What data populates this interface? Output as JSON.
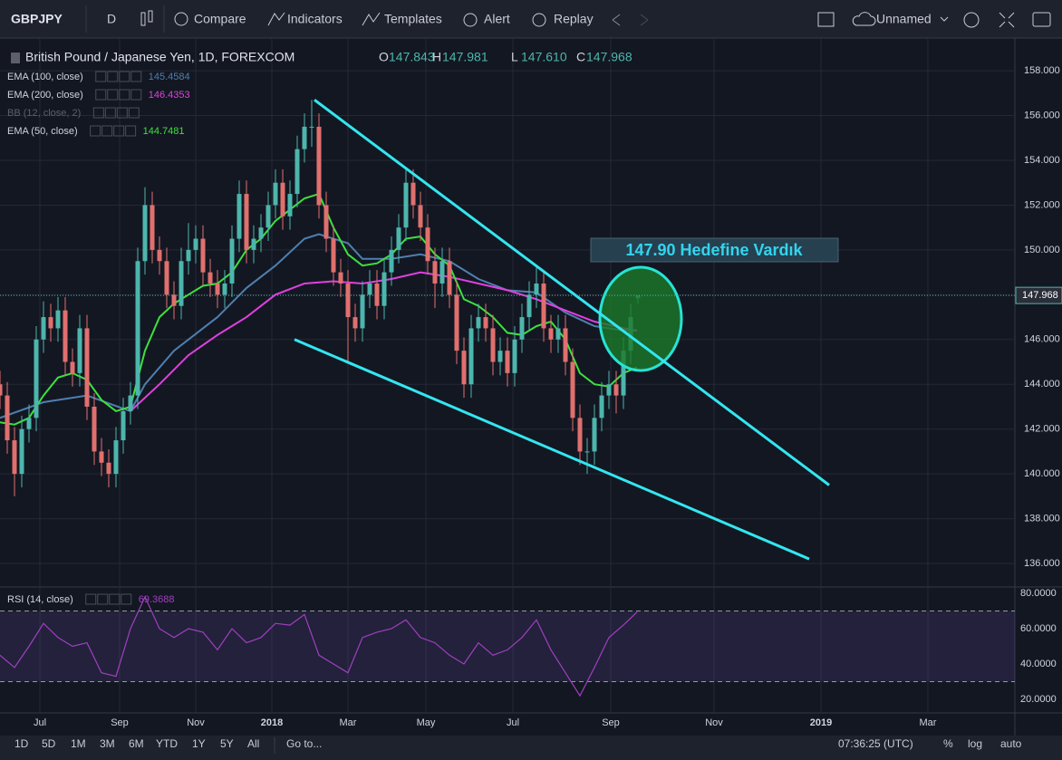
{
  "toolbar": {
    "symbol": "GBPJPY",
    "interval": "D",
    "items": [
      "Compare",
      "Indicators",
      "Templates",
      "Alert",
      "Replay"
    ],
    "layout_name": "Unnamed"
  },
  "bottom_bar": {
    "ranges": [
      "1D",
      "5D",
      "1M",
      "3M",
      "6M",
      "YTD",
      "1Y",
      "5Y",
      "All"
    ],
    "goto": "Go to...",
    "clock": "07:36:25 (UTC)",
    "options": [
      "%",
      "log",
      "auto"
    ]
  },
  "chart_data": {
    "type": "candlestick",
    "title": "British Pound / Japanese Yen, 1D, FOREXCOM",
    "ohlc": [
      {
        "label": "O",
        "value": "147.843"
      },
      {
        "label": "H",
        "value": "147.981"
      },
      {
        "label": "L",
        "value": "147.610"
      },
      {
        "label": "C",
        "value": "147.968"
      }
    ],
    "up_color": "#4db6ac",
    "down_color": "#e0706e",
    "x": [
      0,
      4,
      8,
      12,
      16,
      20,
      24,
      28,
      32,
      36,
      40,
      44,
      48,
      52,
      56,
      60,
      64,
      68,
      72,
      76,
      80,
      84,
      88,
      92,
      96,
      100,
      104,
      108,
      112,
      116,
      120,
      124,
      128,
      132,
      136,
      140,
      144,
      148,
      152,
      156,
      160,
      164,
      168,
      172,
      176,
      180,
      184,
      188,
      192,
      196,
      200,
      204,
      208,
      212,
      216,
      220,
      224,
      228,
      232,
      236,
      240,
      244,
      248,
      252,
      256,
      260,
      264,
      268,
      272,
      276,
      280,
      284,
      288,
      292,
      296,
      300,
      304,
      308,
      312,
      316,
      320,
      324,
      328,
      332,
      336,
      340,
      344,
      348,
      352
    ],
    "open": [
      144,
      143.5,
      141.5,
      140,
      142,
      142.5,
      146,
      147,
      146.5,
      147.3,
      145,
      144.5,
      146.5,
      143,
      141,
      140.5,
      140,
      141.5,
      142.8,
      143.5,
      149.5,
      152,
      150,
      149.5,
      148,
      147.5,
      149.5,
      150,
      150.5,
      149,
      148.5,
      148,
      148.5,
      150.5,
      152.5,
      150,
      150.5,
      151,
      152,
      153,
      151.5,
      152.5,
      154.5,
      155.5,
      155.5,
      152,
      150.5,
      149,
      148.5,
      147,
      146.5,
      148,
      148.5,
      147.5,
      149,
      150,
      151,
      153,
      152,
      151,
      149.5,
      148.5,
      149.5,
      148,
      145.5,
      144,
      146.5,
      147,
      146.5,
      145,
      145.5,
      144.5,
      146,
      147,
      148,
      148.5,
      146.5,
      146,
      146.5,
      145,
      142.5,
      141,
      141,
      142.5,
      143.5,
      144,
      143.5,
      145.5,
      147.843
    ],
    "high": [
      144.6,
      144.1,
      142.1,
      142.6,
      143.1,
      146.6,
      147.7,
      147.6,
      147.9,
      147.9,
      145.6,
      147.1,
      147.1,
      143.6,
      141.6,
      141.1,
      142.1,
      143.4,
      144.1,
      150.1,
      152.8,
      152.6,
      150.6,
      150.1,
      148.6,
      150.1,
      151.2,
      151.1,
      151.1,
      149.6,
      149.1,
      149.1,
      151.1,
      153.1,
      153.1,
      151.1,
      151.6,
      152.6,
      153.6,
      153.6,
      153.1,
      155.1,
      156.1,
      156.7,
      156.1,
      152.6,
      151.1,
      149.6,
      149.1,
      147.6,
      148.6,
      149.1,
      149.1,
      149.6,
      150.6,
      151.6,
      153.7,
      153.6,
      152.6,
      151.6,
      150.1,
      150.1,
      150.1,
      148.6,
      146.1,
      147.1,
      147.6,
      147.6,
      147.1,
      146.1,
      146.1,
      146.6,
      147.6,
      148.6,
      149.2,
      149.1,
      147.1,
      147.1,
      147.1,
      145.6,
      143.1,
      141.6,
      143.1,
      144.1,
      144.6,
      144.6,
      146.1,
      147.6,
      147.981
    ],
    "low": [
      142.9,
      140.9,
      139,
      139.4,
      141.4,
      141.9,
      145.4,
      145.9,
      145.9,
      144.4,
      143.9,
      143.9,
      142.4,
      140.4,
      139.9,
      139.4,
      139.4,
      140.9,
      142.2,
      142.9,
      148.9,
      149.4,
      148.9,
      147.4,
      146.9,
      146.9,
      148.9,
      149.4,
      148.4,
      147.9,
      147.4,
      147.4,
      147.9,
      149.9,
      149.4,
      149.4,
      149.9,
      150.4,
      151.4,
      150.9,
      150.9,
      151.9,
      153.9,
      154.6,
      151.4,
      149.9,
      148.4,
      147.9,
      145,
      145.9,
      145.9,
      147.4,
      146.9,
      146.9,
      148.4,
      149.4,
      150.4,
      151.4,
      150.4,
      148.9,
      147.4,
      147.9,
      147.4,
      144.9,
      143.4,
      143.4,
      145.9,
      145.9,
      144.4,
      144.4,
      143.9,
      143.9,
      145.4,
      146.4,
      147.4,
      145.9,
      145.4,
      145.4,
      144.4,
      141.9,
      140.4,
      140,
      140.4,
      141.9,
      142.9,
      142.7,
      142.9,
      144.9,
      147.61
    ],
    "close": [
      143.5,
      141.5,
      140,
      142,
      142.5,
      146,
      147,
      146.5,
      147.3,
      145,
      144.5,
      146.5,
      143,
      141,
      140.5,
      140,
      141.5,
      142.8,
      143.5,
      149.5,
      152,
      150,
      149.5,
      148,
      147.5,
      149.5,
      150,
      150.5,
      149,
      148.5,
      148,
      148.5,
      150.5,
      152.5,
      150,
      150.5,
      151,
      152,
      153,
      151.5,
      152.5,
      154.5,
      155.5,
      155.5,
      152,
      150.5,
      149,
      148.5,
      147,
      146.5,
      148,
      148.5,
      147.5,
      149,
      150,
      151,
      153,
      152,
      151,
      149.5,
      148.5,
      149.5,
      148,
      145.5,
      144,
      146.5,
      147,
      146.5,
      145,
      145.5,
      144.5,
      146,
      147,
      148,
      148.5,
      146.5,
      146,
      146.5,
      145,
      142.5,
      141,
      141,
      142.5,
      143.5,
      144,
      143.5,
      145.5,
      147,
      147.968
    ],
    "xlim": [
      0,
      560
    ],
    "xticks": [
      {
        "value": 22,
        "label": "Jul"
      },
      {
        "value": 66,
        "label": "Sep"
      },
      {
        "value": 108,
        "label": "Nov"
      },
      {
        "value": 150,
        "label": "2018"
      },
      {
        "value": 192,
        "label": "Mar"
      },
      {
        "value": 235,
        "label": "May"
      },
      {
        "value": 283,
        "label": "Jul"
      },
      {
        "value": 337,
        "label": "Sep"
      },
      {
        "value": 394,
        "label": "Nov"
      },
      {
        "value": 453,
        "label": "2019"
      },
      {
        "value": 512,
        "label": "Mar"
      }
    ],
    "ylim": [
      134.95,
      159.46
    ],
    "yticks": [
      {
        "value": 136,
        "label": "136.000"
      },
      {
        "value": 138,
        "label": "138.000"
      },
      {
        "value": 140,
        "label": "140.000"
      },
      {
        "value": 142,
        "label": "142.000"
      },
      {
        "value": 144,
        "label": "144.000"
      },
      {
        "value": 146,
        "label": "146.000"
      },
      {
        "value": 148,
        "label": "148.000"
      },
      {
        "value": 150,
        "label": "150.000"
      },
      {
        "value": 152,
        "label": "152.000"
      },
      {
        "value": 154,
        "label": "154.000"
      },
      {
        "value": 156,
        "label": "156.000"
      },
      {
        "value": 158,
        "label": "158.000"
      }
    ],
    "grid": true,
    "last_price": {
      "value": 147.968,
      "label": "147.968"
    },
    "series": [
      {
        "name": "EMA (100, close)",
        "legend_value": "145.4584",
        "color": "#4f7fae",
        "x": [
          0,
          24,
          48,
          72,
          80,
          96,
          112,
          120,
          136,
          152,
          168,
          176,
          192,
          200,
          216,
          232,
          248,
          264,
          280,
          296,
          312,
          328,
          344,
          351.5
        ],
        "values": [
          142.5,
          143.2,
          143.5,
          142.8,
          144,
          145.5,
          146.5,
          147,
          148.3,
          149.3,
          150.5,
          150.7,
          150.3,
          149.6,
          149.6,
          149.8,
          149.5,
          148.7,
          148.2,
          148.1,
          147.2,
          146.6,
          146.4,
          146.4
        ]
      },
      {
        "name": "EMA (200, close)",
        "legend_value": "146.4353",
        "color": "#e040e0",
        "x": [
          72,
          88,
          104,
          120,
          136,
          152,
          168,
          184,
          200,
          216,
          232,
          248,
          264,
          280,
          296,
          312,
          328,
          344,
          351.5
        ],
        "values": [
          142.8,
          144,
          145.3,
          146.2,
          147,
          148,
          148.5,
          148.6,
          148.5,
          148.7,
          149,
          148.8,
          148.5,
          148.2,
          147.8,
          147.3,
          146.8,
          146.5,
          146.4
        ]
      },
      {
        "name": "BB (12, close, 2)",
        "hidden": true,
        "color": "#5d606b"
      },
      {
        "name": "EMA (50, close)",
        "legend_value": "144.7481",
        "color": "#3ee03e",
        "x": [
          0,
          8,
          16,
          24,
          32,
          40,
          48,
          56,
          64,
          72,
          80,
          88,
          96,
          104,
          112,
          120,
          128,
          136,
          144,
          152,
          160,
          168,
          176,
          184,
          192,
          200,
          208,
          216,
          224,
          232,
          240,
          248,
          256,
          264,
          272,
          280,
          288,
          296,
          304,
          312,
          320,
          328,
          336,
          344,
          351.5
        ],
        "values": [
          142.3,
          142.2,
          142.5,
          143.5,
          144.3,
          144.5,
          144.2,
          143.3,
          142.8,
          143,
          145.5,
          147,
          147.6,
          148,
          148.4,
          148.5,
          149,
          150,
          150.5,
          151.3,
          151.8,
          152.3,
          152.5,
          151,
          149.8,
          149.3,
          149.4,
          149.8,
          150.5,
          150.6,
          149.8,
          149.3,
          147.8,
          147.5,
          147,
          146.3,
          146.2,
          146.6,
          146.8,
          146,
          144.5,
          144,
          143.9,
          144.5,
          144.75
        ]
      }
    ],
    "trendlines": [
      {
        "color": "#33e6f0",
        "x": [
          173.5,
          457.5
        ],
        "y": [
          156.7,
          139.5
        ]
      },
      {
        "color": "#33e6f0",
        "x": [
          162.5,
          446.5
        ],
        "y": [
          146,
          136.2
        ]
      }
    ],
    "annotation": "147.90 Hedefine Vardık",
    "rsi": {
      "name": "RSI (14, close)",
      "legend_value": "69.3688",
      "color": "#a040c0",
      "x": [
        0,
        8,
        16,
        24,
        32,
        40,
        48,
        56,
        64,
        72,
        80,
        88,
        96,
        104,
        112,
        120,
        128,
        136,
        144,
        152,
        160,
        168,
        176,
        184,
        192,
        200,
        208,
        216,
        224,
        232,
        240,
        248,
        256,
        264,
        272,
        280,
        288,
        296,
        304,
        312,
        320,
        328,
        336,
        344,
        351.5
      ],
      "values": [
        45,
        38,
        50,
        63,
        55,
        50,
        52,
        35,
        33,
        60,
        78,
        60,
        55,
        60,
        58,
        48,
        60,
        52,
        55,
        63,
        62,
        68,
        45,
        40,
        35,
        55,
        58,
        60,
        65,
        55,
        52,
        45,
        40,
        52,
        45,
        48,
        55,
        65,
        48,
        35,
        22,
        38,
        55,
        62,
        69.37
      ],
      "ylim": [
        12.3,
        83.6
      ],
      "yticks": [
        {
          "value": 20,
          "label": "20.0000"
        },
        {
          "value": 40,
          "label": "40.0000"
        },
        {
          "value": 60,
          "label": "60.0000"
        },
        {
          "value": 80,
          "label": "80.0000"
        }
      ],
      "bands": [
        30,
        70
      ]
    }
  }
}
